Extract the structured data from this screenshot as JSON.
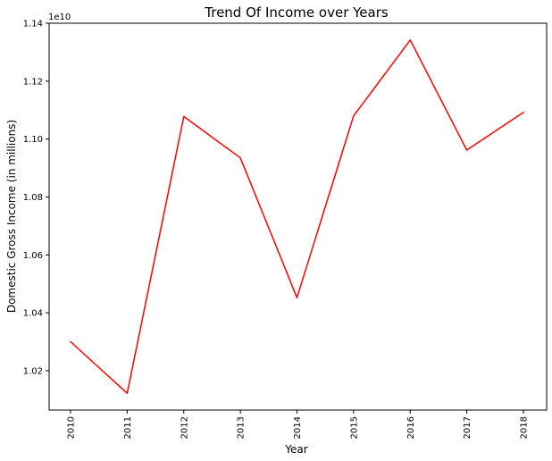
{
  "chart_data": {
    "type": "line",
    "title": "Trend Of Income over Years",
    "xlabel": "Year",
    "ylabel": "Domestic Gross Income (in millions)",
    "offset_label": "1e10",
    "x": [
      "2010",
      "2011",
      "2012",
      "2013",
      "2014",
      "2015",
      "2016",
      "2017",
      "2018"
    ],
    "series": [
      {
        "color": "#ff0000",
        "values": [
          10300000000,
          10122000000,
          11078000000,
          10935000000,
          10452000000,
          11080000000,
          11342000000,
          10962000000,
          11092000000
        ]
      }
    ],
    "yticks": [
      {
        "value": 10200000000,
        "label": "1.02"
      },
      {
        "value": 10400000000,
        "label": "1.04"
      },
      {
        "value": 10600000000,
        "label": "1.06"
      },
      {
        "value": 10800000000,
        "label": "1.08"
      },
      {
        "value": 11000000000,
        "label": "1.10"
      },
      {
        "value": 11200000000,
        "label": "1.12"
      },
      {
        "value": 11400000000,
        "label": "1.14"
      }
    ],
    "ylim": [
      10064000000,
      11400000000
    ],
    "grid": false,
    "legend": "none"
  }
}
